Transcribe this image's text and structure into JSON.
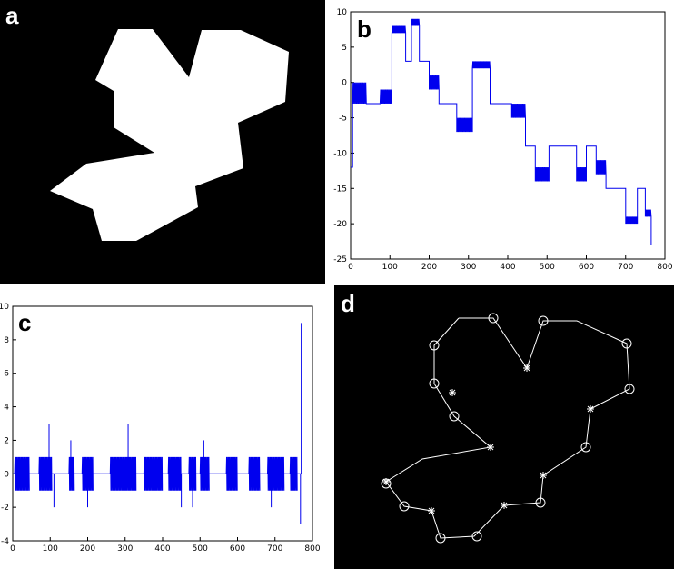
{
  "colors": {
    "series": "#0000ee",
    "panel_bg": "#000000",
    "shape": "#ffffff",
    "axes": "#000000",
    "marker": "#ffffff"
  },
  "panels": {
    "a": {
      "label": "a"
    },
    "b": {
      "label": "b"
    },
    "c": {
      "label": "c"
    },
    "d": {
      "label": "d"
    }
  },
  "chart_data": [
    {
      "panel": "b",
      "type": "line",
      "title": "",
      "xlabel": "",
      "ylabel": "",
      "xlim": [
        0,
        800
      ],
      "ylim": [
        -25,
        10
      ],
      "xticks": [
        0,
        100,
        200,
        300,
        400,
        500,
        600,
        700,
        800
      ],
      "yticks": [
        10,
        5,
        0,
        -5,
        -10,
        -15,
        -20,
        -25
      ],
      "grid": false,
      "segments": [
        {
          "x0": 0,
          "x1": 5,
          "base": -12,
          "osc": 0
        },
        {
          "x0": 5,
          "x1": 40,
          "base": -3,
          "osc": 3
        },
        {
          "x0": 40,
          "x1": 75,
          "base": -3,
          "osc": 0
        },
        {
          "x0": 75,
          "x1": 105,
          "base": -3,
          "osc": 2
        },
        {
          "x0": 105,
          "x1": 140,
          "base": 7,
          "osc": 1
        },
        {
          "x0": 140,
          "x1": 155,
          "base": 3,
          "osc": 0
        },
        {
          "x0": 155,
          "x1": 175,
          "base": 8,
          "osc": 1
        },
        {
          "x0": 175,
          "x1": 200,
          "base": 3,
          "osc": 0
        },
        {
          "x0": 200,
          "x1": 225,
          "base": -1,
          "osc": 2
        },
        {
          "x0": 225,
          "x1": 240,
          "base": -3,
          "osc": 0
        },
        {
          "x0": 240,
          "x1": 270,
          "base": -3,
          "osc": 0
        },
        {
          "x0": 270,
          "x1": 310,
          "base": -7,
          "osc": 2
        },
        {
          "x0": 310,
          "x1": 355,
          "base": 2,
          "osc": 1
        },
        {
          "x0": 355,
          "x1": 370,
          "base": -3,
          "osc": 0
        },
        {
          "x0": 370,
          "x1": 410,
          "base": -3,
          "osc": 0
        },
        {
          "x0": 410,
          "x1": 445,
          "base": -5,
          "osc": 2
        },
        {
          "x0": 445,
          "x1": 460,
          "base": -9,
          "osc": 0
        },
        {
          "x0": 460,
          "x1": 470,
          "base": -9,
          "osc": 0
        },
        {
          "x0": 470,
          "x1": 505,
          "base": -14,
          "osc": 2
        },
        {
          "x0": 505,
          "x1": 520,
          "base": -9,
          "osc": 0
        },
        {
          "x0": 520,
          "x1": 575,
          "base": -9,
          "osc": 0
        },
        {
          "x0": 575,
          "x1": 600,
          "base": -14,
          "osc": 2
        },
        {
          "x0": 600,
          "x1": 615,
          "base": -9,
          "osc": 0
        },
        {
          "x0": 615,
          "x1": 625,
          "base": -9,
          "osc": 0
        },
        {
          "x0": 625,
          "x1": 650,
          "base": -13,
          "osc": 2
        },
        {
          "x0": 650,
          "x1": 700,
          "base": -15,
          "osc": 0
        },
        {
          "x0": 700,
          "x1": 730,
          "base": -20,
          "osc": 1
        },
        {
          "x0": 730,
          "x1": 750,
          "base": -15,
          "osc": 0
        },
        {
          "x0": 750,
          "x1": 765,
          "base": -19,
          "osc": 1
        },
        {
          "x0": 765,
          "x1": 770,
          "base": -23,
          "osc": 0
        }
      ]
    },
    {
      "panel": "c",
      "type": "line",
      "title": "",
      "xlabel": "",
      "ylabel": "",
      "xlim": [
        0,
        800
      ],
      "ylim": [
        -4,
        10
      ],
      "xticks": [
        0,
        100,
        200,
        300,
        400,
        500,
        600,
        700,
        800
      ],
      "yticks": [
        10,
        8,
        6,
        4,
        2,
        0,
        -2,
        -4
      ],
      "grid": false,
      "bursts": [
        [
          5,
          45
        ],
        [
          70,
          105
        ],
        [
          150,
          165
        ],
        [
          185,
          215
        ],
        [
          260,
          330
        ],
        [
          350,
          400
        ],
        [
          415,
          450
        ],
        [
          470,
          490
        ],
        [
          500,
          525
        ],
        [
          570,
          600
        ],
        [
          630,
          660
        ],
        [
          680,
          725
        ],
        [
          740,
          760
        ]
      ],
      "spikes": [
        [
          97,
          3
        ],
        [
          155,
          2
        ],
        [
          308,
          3
        ],
        [
          510,
          2
        ],
        [
          770,
          9
        ],
        [
          768,
          -3
        ],
        [
          110,
          -2
        ],
        [
          200,
          -2
        ],
        [
          450,
          -2
        ],
        [
          480,
          -2
        ],
        [
          690,
          -2
        ]
      ]
    }
  ]
}
